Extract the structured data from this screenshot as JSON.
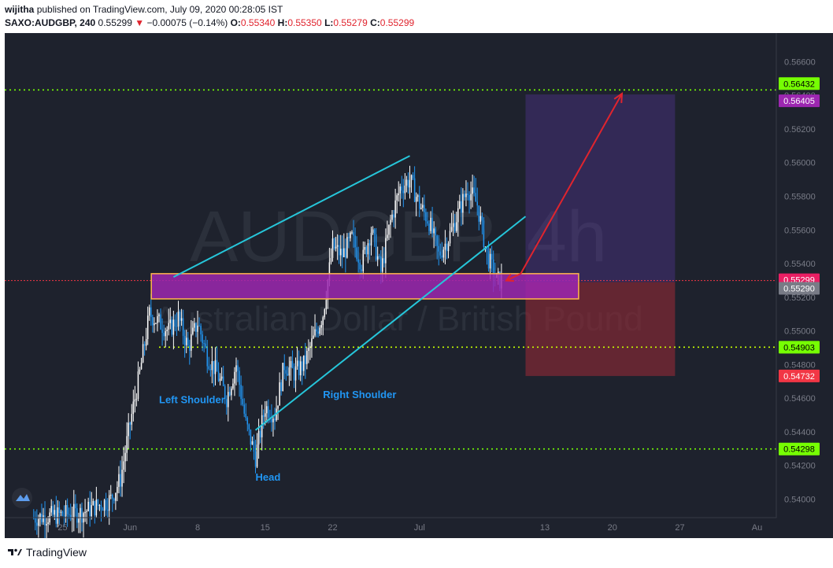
{
  "header": {
    "publisher": "wijitha",
    "published_text": "published on TradingView.com, July 09, 2020 00:28:05 IST",
    "symbol": "SAXO:AUDGBP",
    "interval": "240",
    "last": "0.55299",
    "change_arrow": "▼",
    "change": "−0.00075 (−0.14%)",
    "o_label": "O:",
    "o_value": "0.55340",
    "h_label": "H:",
    "h_value": "0.55350",
    "l_label": "L:",
    "l_value": "0.55279",
    "c_label": "C:",
    "c_value": "0.55299"
  },
  "watermark": {
    "line1": "AUDGBP, 4h",
    "line2": "Australian Dollar / British Pound"
  },
  "colors": {
    "background": "#1e222d",
    "candle_up": "#ffffff",
    "candle_down": "#2196f3",
    "trendline": "#26c6da",
    "zone_fill": "#9c27b0",
    "zone_border": "#ffb74d",
    "level_green": "#76ff03",
    "level_yellow": "#c6ff00",
    "target_box": "#673ab7",
    "stop_box": "#8b2a35",
    "arrow": "#e0242e",
    "annotation_text": "#2196f3",
    "price_tag_green": "#76ff03",
    "price_tag_purple": "#9c27b0",
    "price_tag_red": "#f23645",
    "price_tag_pink": "#e91e63",
    "price_tag_gray": "#787b86"
  },
  "annotations": {
    "left_shoulder": "Left Shoulder",
    "right_shoulder": "Right Shoulder",
    "head": "Head"
  },
  "price_tags": [
    {
      "label": "0.56432",
      "kind": "green"
    },
    {
      "label": "0.56405",
      "kind": "purple"
    },
    {
      "label": "0.55299",
      "kind": "pink"
    },
    {
      "label": "0.55290",
      "kind": "gray"
    },
    {
      "label": "0.54903",
      "kind": "green"
    },
    {
      "label": "0.54732",
      "kind": "red"
    },
    {
      "label": "0.54298",
      "kind": "green"
    }
  ],
  "footer": {
    "brand": "TradingView"
  },
  "chart_data": {
    "type": "candlestick",
    "symbol": "AUDGBP",
    "timeframe": "4h",
    "y_axis_ticks": [
      "0.56600",
      "0.56400",
      "0.56200",
      "0.56000",
      "0.55800",
      "0.55600",
      "0.55400",
      "0.55200",
      "0.55000",
      "0.54800",
      "0.54600",
      "0.54400",
      "0.54200",
      "0.54000"
    ],
    "y_tick_values": [
      0.566,
      0.564,
      0.562,
      0.56,
      0.558,
      0.556,
      0.554,
      0.552,
      0.55,
      0.548,
      0.546,
      0.544,
      0.542,
      0.54
    ],
    "ylim": [
      0.5389,
      0.5677
    ],
    "x_axis_ticks": [
      "25",
      "Jun",
      "8",
      "15",
      "22",
      "Jul",
      "13",
      "20",
      "27",
      "Au"
    ],
    "x_tick_days": [
      -6,
      1,
      8,
      15,
      22,
      31,
      44,
      51,
      58,
      66
    ],
    "xlim_days": [
      -12,
      68
    ],
    "candles_day_range": [
      -9,
      39.5
    ],
    "close_path": [
      {
        "day": -9,
        "close": 0.5389
      },
      {
        "day": -4,
        "close": 0.5392
      },
      {
        "day": -2,
        "close": 0.5397
      },
      {
        "day": -1,
        "close": 0.54
      },
      {
        "day": 0,
        "close": 0.5412
      },
      {
        "day": 1,
        "close": 0.5445
      },
      {
        "day": 2,
        "close": 0.5475
      },
      {
        "day": 3,
        "close": 0.551
      },
      {
        "day": 4,
        "close": 0.5505
      },
      {
        "day": 5,
        "close": 0.55
      },
      {
        "day": 6,
        "close": 0.5508
      },
      {
        "day": 7,
        "close": 0.549
      },
      {
        "day": 8,
        "close": 0.5505
      },
      {
        "day": 9,
        "close": 0.5485
      },
      {
        "day": 10,
        "close": 0.5475
      },
      {
        "day": 11,
        "close": 0.546
      },
      {
        "day": 12,
        "close": 0.548
      },
      {
        "day": 13,
        "close": 0.5445
      },
      {
        "day": 14,
        "close": 0.5425
      },
      {
        "day": 15,
        "close": 0.5455
      },
      {
        "day": 16,
        "close": 0.545
      },
      {
        "day": 17,
        "close": 0.548
      },
      {
        "day": 18,
        "close": 0.5475
      },
      {
        "day": 19,
        "close": 0.548
      },
      {
        "day": 20,
        "close": 0.5495
      },
      {
        "day": 21,
        "close": 0.551
      },
      {
        "day": 22,
        "close": 0.555
      },
      {
        "day": 23,
        "close": 0.5545
      },
      {
        "day": 24,
        "close": 0.5555
      },
      {
        "day": 25,
        "close": 0.554
      },
      {
        "day": 26,
        "close": 0.556
      },
      {
        "day": 27,
        "close": 0.5535
      },
      {
        "day": 28,
        "close": 0.5565
      },
      {
        "day": 29,
        "close": 0.5585
      },
      {
        "day": 30,
        "close": 0.559
      },
      {
        "day": 31,
        "close": 0.5575
      },
      {
        "day": 32,
        "close": 0.5565
      },
      {
        "day": 33,
        "close": 0.5545
      },
      {
        "day": 34,
        "close": 0.5555
      },
      {
        "day": 35,
        "close": 0.557
      },
      {
        "day": 36,
        "close": 0.5585
      },
      {
        "day": 37,
        "close": 0.5575
      },
      {
        "day": 38,
        "close": 0.5545
      },
      {
        "day": 39,
        "close": 0.553
      },
      {
        "day": 39.5,
        "close": 0.55299
      }
    ],
    "horizontal_levels": [
      {
        "price": 0.56432,
        "color": "green",
        "style": "dotted",
        "from_day": -12
      },
      {
        "price": 0.54903,
        "color": "yellow-green",
        "style": "dotted",
        "from_day": 4
      },
      {
        "price": 0.54298,
        "color": "green",
        "style": "dotted",
        "from_day": -12
      },
      {
        "price": 0.55299,
        "color": "red",
        "style": "dotted",
        "from_day": -12
      }
    ],
    "support_zone": {
      "from_day": 3.2,
      "to_day": 47.5,
      "low": 0.5519,
      "high": 0.5534
    },
    "trendlines": [
      {
        "p1": {
          "day": 5.5,
          "price": 0.5532
        },
        "p2": {
          "day": 30,
          "price": 0.5604
        }
      },
      {
        "p1": {
          "day": 14,
          "price": 0.5441
        },
        "p2": {
          "day": 42,
          "price": 0.5568
        }
      }
    ],
    "long_position": {
      "from_day": 42,
      "to_day": 57.5,
      "entry": 0.5529,
      "target": 0.56405,
      "stop": 0.54732
    },
    "projection_arrow": [
      {
        "day": 40,
        "price": 0.55299
      },
      {
        "day": 41.5,
        "price": 0.5534
      },
      {
        "day": 52,
        "price": 0.5641
      }
    ],
    "annotations": [
      {
        "text": "Left Shoulder",
        "day": 4,
        "price": 0.5457
      },
      {
        "text": "Head",
        "day": 14,
        "price": 0.5411
      },
      {
        "text": "Right Shoulder",
        "day": 21,
        "price": 0.546
      }
    ]
  }
}
